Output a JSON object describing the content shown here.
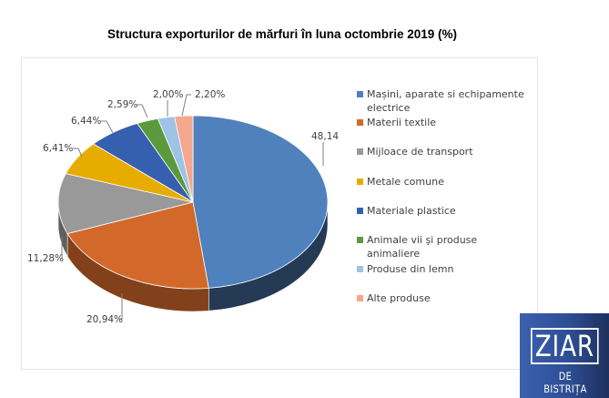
{
  "chart_data": {
    "type": "pie",
    "style": "3d",
    "title": "Structura exporturilor de mărfuri în luna octombrie 2019 (%)",
    "legend_position": "right",
    "unit": "%",
    "series": [
      {
        "name": "Mașini, aparate si echipamente electrice",
        "value": 48.14,
        "label": "48,14",
        "color": "#4f81bd"
      },
      {
        "name": "Materii textile",
        "value": 20.94,
        "label": "20,94%",
        "color": "#d2692a"
      },
      {
        "name": "Mijloace de transport",
        "value": 11.28,
        "label": "11,28%",
        "color": "#999999"
      },
      {
        "name": "Metale comune",
        "value": 6.41,
        "label": "6,41%",
        "color": "#e6ad00"
      },
      {
        "name": "Materiale plastice",
        "value": 6.44,
        "label": "6,44%",
        "color": "#3660af"
      },
      {
        "name": "Animale vii şi produse animaliere",
        "value": 2.59,
        "label": "2,59%",
        "color": "#5b9a3c"
      },
      {
        "name": "Produse din lemn",
        "value": 2.0,
        "label": "2,00%",
        "color": "#9dc3e6"
      },
      {
        "name": "Alte produse",
        "value": 2.2,
        "label": "2,20%",
        "color": "#f4a88e"
      }
    ]
  },
  "legend": {
    "items": [
      {
        "label_line1": "Mașini, aparate si echipamente",
        "label_line2": "electrice",
        "color": "#4f81bd"
      },
      {
        "label_line1": "Materii textile",
        "label_line2": "",
        "color": "#d2692a"
      },
      {
        "label_line1": "Mijloace de transport",
        "label_line2": "",
        "color": "#999999"
      },
      {
        "label_line1": "Metale comune",
        "label_line2": "",
        "color": "#e6ad00"
      },
      {
        "label_line1": "Materiale plastice",
        "label_line2": "",
        "color": "#3660af"
      },
      {
        "label_line1": "Animale vii şi produse animaliere",
        "label_line2": "",
        "color": "#5b9a3c"
      },
      {
        "label_line1": "Produse din lemn",
        "label_line2": "",
        "color": "#9dc3e6"
      },
      {
        "label_line1": "Alte produse",
        "label_line2": "",
        "color": "#f4a88e"
      }
    ]
  },
  "logo": {
    "main": "ZIAR",
    "sub": "DE BISTRIȚA"
  }
}
